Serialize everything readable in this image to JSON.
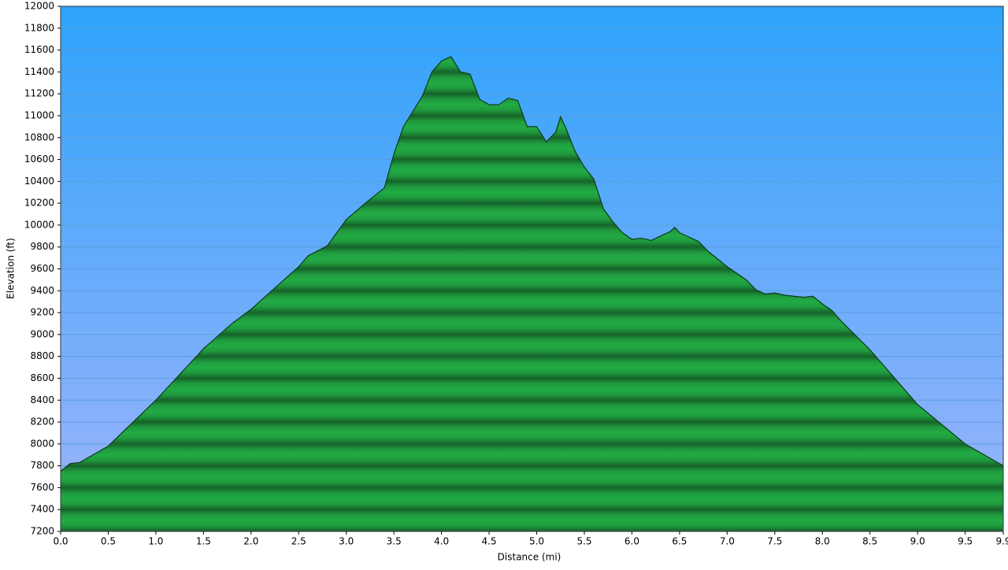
{
  "chart_data": {
    "type": "area",
    "x_label": "Distance   (mi)",
    "y_label": "Elevation (ft)",
    "x": [
      0,
      0.1,
      0.2,
      0.5,
      1.0,
      1.5,
      1.8,
      2.0,
      2.5,
      2.6,
      2.8,
      3.0,
      3.2,
      3.4,
      3.5,
      3.6,
      3.7,
      3.8,
      3.9,
      4.0,
      4.1,
      4.2,
      4.3,
      4.4,
      4.5,
      4.6,
      4.7,
      4.8,
      4.9,
      5.0,
      5.1,
      5.2,
      5.25,
      5.3,
      5.4,
      5.5,
      5.6,
      5.7,
      5.8,
      5.9,
      6.0,
      6.1,
      6.2,
      6.3,
      6.4,
      6.45,
      6.5,
      6.7,
      6.8,
      7.0,
      7.2,
      7.3,
      7.4,
      7.5,
      7.6,
      7.8,
      7.9,
      8.0,
      8.1,
      8.2,
      8.5,
      9.0,
      9.5,
      9.9
    ],
    "values": [
      7750,
      7820,
      7830,
      7980,
      8400,
      8870,
      9100,
      9230,
      9620,
      9720,
      9810,
      10050,
      10200,
      10340,
      10650,
      10900,
      11040,
      11180,
      11400,
      11500,
      11540,
      11400,
      11380,
      11150,
      11100,
      11100,
      11160,
      11140,
      10900,
      10900,
      10760,
      10850,
      10990,
      10900,
      10680,
      10530,
      10420,
      10150,
      10030,
      9930,
      9870,
      9880,
      9860,
      9900,
      9940,
      9980,
      9930,
      9850,
      9760,
      9620,
      9500,
      9410,
      9370,
      9380,
      9360,
      9340,
      9350,
      9280,
      9220,
      9120,
      8860,
      8360,
      8000,
      7800
    ],
    "color": "#22aa44",
    "xlim": [
      0,
      9.9
    ],
    "ylim": [
      7200,
      12000
    ],
    "xticks": [
      {
        "value": 0,
        "label": "0.0"
      },
      0.5,
      {
        "value": 1,
        "label": "1.0"
      },
      1.5,
      {
        "value": 2,
        "label": "2.0"
      },
      2.5,
      {
        "value": 3,
        "label": "3.0"
      },
      3.5,
      {
        "value": 4,
        "label": "4.0"
      },
      4.5,
      {
        "value": 5,
        "label": "5.0"
      },
      5.5,
      {
        "value": 6,
        "label": "6.0"
      },
      6.5,
      {
        "value": 7,
        "label": "7.0"
      },
      7.5,
      {
        "value": 8,
        "label": "8.0"
      },
      8.5,
      {
        "value": 9,
        "label": "9.0"
      },
      9.5,
      9.9
    ],
    "yticks": [
      7200,
      7400,
      7600,
      7800,
      8000,
      8200,
      8400,
      8600,
      8800,
      9000,
      9200,
      9400,
      9600,
      9800,
      10000,
      10200,
      10400,
      10600,
      10800,
      11000,
      11200,
      11400,
      11600,
      11800,
      12000
    ],
    "grid": true
  }
}
